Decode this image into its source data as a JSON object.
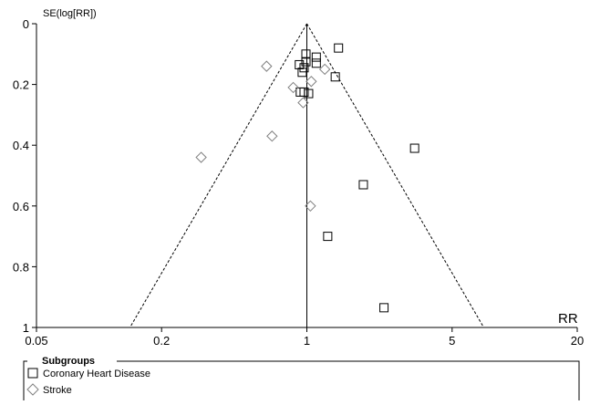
{
  "chart_data": {
    "type": "scatter",
    "title": "",
    "ylabel": "SE(log[RR])",
    "xlabel": "RR",
    "x_scale": "log",
    "x_ticks": [
      0.05,
      0.2,
      1,
      5,
      20
    ],
    "x_tick_labels": [
      "0.05",
      "0.2",
      "1",
      "5",
      "20"
    ],
    "xlim": [
      0.05,
      20
    ],
    "y_inverted": true,
    "y_ticks": [
      0,
      0.2,
      0.4,
      0.6,
      0.8,
      1
    ],
    "y_tick_labels": [
      "0",
      "0.2",
      "0.4",
      "0.6",
      "0.8",
      "1"
    ],
    "ylim": [
      0,
      1
    ],
    "grid": false,
    "pooled_estimate": 1.0,
    "funnel_limits": "dashed pseudo 95% confidence limits",
    "legend": {
      "title": "Subgroups",
      "placement": "bottom-left"
    },
    "series": [
      {
        "name": "Coronary Heart Disease",
        "marker": "square",
        "color": "#000000",
        "points": [
          {
            "x": 1.42,
            "y": 0.08
          },
          {
            "x": 0.99,
            "y": 0.1
          },
          {
            "x": 1.11,
            "y": 0.11
          },
          {
            "x": 0.99,
            "y": 0.125
          },
          {
            "x": 0.92,
            "y": 0.135
          },
          {
            "x": 1.11,
            "y": 0.13
          },
          {
            "x": 0.97,
            "y": 0.145
          },
          {
            "x": 0.95,
            "y": 0.16
          },
          {
            "x": 1.37,
            "y": 0.175
          },
          {
            "x": 0.93,
            "y": 0.225
          },
          {
            "x": 0.97,
            "y": 0.225
          },
          {
            "x": 1.02,
            "y": 0.23
          },
          {
            "x": 3.3,
            "y": 0.41
          },
          {
            "x": 1.87,
            "y": 0.53
          },
          {
            "x": 1.26,
            "y": 0.7
          },
          {
            "x": 2.35,
            "y": 0.935
          }
        ]
      },
      {
        "name": "Stroke",
        "marker": "diamond",
        "color": "#808080",
        "points": [
          {
            "x": 0.64,
            "y": 0.14
          },
          {
            "x": 1.22,
            "y": 0.15
          },
          {
            "x": 1.05,
            "y": 0.19
          },
          {
            "x": 0.86,
            "y": 0.21
          },
          {
            "x": 0.96,
            "y": 0.26
          },
          {
            "x": 0.68,
            "y": 0.37
          },
          {
            "x": 0.31,
            "y": 0.44
          },
          {
            "x": 1.04,
            "y": 0.6
          }
        ]
      }
    ]
  }
}
